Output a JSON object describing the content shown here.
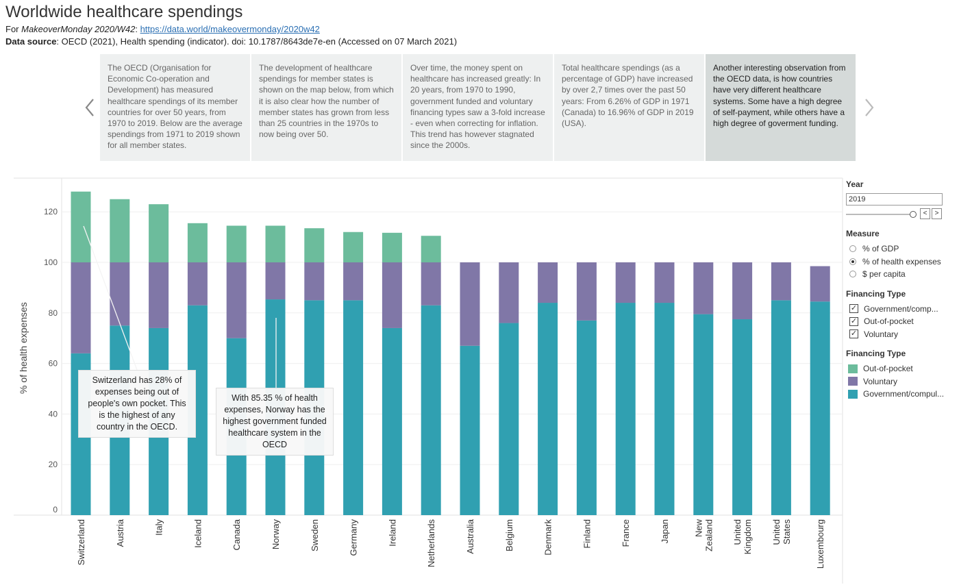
{
  "header": {
    "title": "Worldwide healthcare spendings",
    "for_prefix": "For ",
    "for_italic": "MakeoverMonday 2020/W42",
    "for_colon": ": ",
    "link": "https://data.world/makeovermonday/2020w42",
    "source_label": "Data source",
    "source_text": ": OECD (2021), Health spending (indicator). doi: 10.1787/8643de7e-en (Accessed on 07 March 2021)"
  },
  "carousel": {
    "prev_icon": "chevron-left-icon",
    "next_icon": "chevron-right-icon",
    "cards": [
      "The OECD (Organisation for Economic Co-operation and Development) has measured healthcare spendings of its member countries for over 50 years, from 1970 to 2019. Below are the average spendings from 1971 to 2019 shown for all member states.",
      "The development of healthcare spendings for member states is shown on the map below, from which it is also clear how the number of member states has grown from less than 25 countries in the 1970s to now being over 50.",
      "Over time, the money spent on healthcare has increased greatly: In 20 years, from 1970 to 1990, government funded and voluntary financing types saw a 3-fold increase - even when correcting for inflation. This trend has however stagnated since the 2000s.",
      "Total healthcare spendings (as a percentage of GDP) have increased by over 2,7 times over the past 50 years: From 6.26% of GDP in 1971 (Canada) to 16.96% of GDP in 2019 (USA).",
      "Another interesting observation from the OECD data, is how countries have very different healthcare systems. Some have a high degree of self-payment, while others have a high degree of goverment funding."
    ],
    "active_index": 4
  },
  "annotations": {
    "switzerland": "Switzerland has 28% of expenses being out of people's own pocket. This is the highest of any country in the OECD.",
    "norway": "With 85.35 % of health expenses, Norway has the highest government funded healthcare system in the OECD"
  },
  "chart_data": {
    "type": "bar",
    "stacked": true,
    "ylabel": "% of health expenses",
    "ylim": [
      0,
      130
    ],
    "yticks": [
      "0",
      "20",
      "40",
      "60",
      "80",
      "100",
      "120"
    ],
    "grid": true,
    "categories": [
      [
        "Switzerland"
      ],
      [
        "Austria"
      ],
      [
        "Italy"
      ],
      [
        "Iceland"
      ],
      [
        "Canada"
      ],
      [
        "Norway"
      ],
      [
        "Sweden"
      ],
      [
        "Germany"
      ],
      [
        "Ireland"
      ],
      [
        "Netherlands"
      ],
      [
        "Australia"
      ],
      [
        "Belgium"
      ],
      [
        "Denmark"
      ],
      [
        "Finland"
      ],
      [
        "France"
      ],
      [
        "Japan"
      ],
      [
        "New",
        "Zealand"
      ],
      [
        "United",
        "Kingdom"
      ],
      [
        "United",
        "States"
      ],
      [
        "Luxembourg"
      ]
    ],
    "series": [
      {
        "name": "Government/compul..",
        "color": "#30a0b1",
        "values": [
          64,
          75,
          74,
          83,
          70,
          85.35,
          85,
          85,
          74,
          83,
          67,
          76,
          84,
          77,
          84,
          84,
          79.5,
          77.5,
          85,
          84.5
        ]
      },
      {
        "name": "Voluntary",
        "color": "#8077a7",
        "values": [
          36,
          25,
          26,
          17,
          30,
          14.65,
          15,
          15,
          26,
          17,
          33,
          24,
          16,
          23,
          16,
          16,
          20.5,
          22.5,
          15,
          14
        ]
      },
      {
        "name": "Out-of-pocket",
        "color": "#6cbc9c",
        "values": [
          28,
          25,
          23,
          15.5,
          14.5,
          14.5,
          13.5,
          12,
          11.7,
          10.5,
          0,
          0,
          0,
          0,
          0,
          0,
          0,
          0,
          0,
          0
        ]
      }
    ]
  },
  "panel": {
    "year_title": "Year",
    "year_value": "2019",
    "prev_btn": "<",
    "next_btn": ">",
    "measure_title": "Measure",
    "measure_options": [
      "% of GDP",
      "% of health expenses",
      "$ per capita"
    ],
    "measure_selected": 1,
    "filter_title": "Financing Type",
    "filter_options": [
      "Government/comp...",
      "Out-of-pocket",
      "Voluntary"
    ],
    "check_mark": "✓",
    "legend_title": "Financing Type",
    "legend_items": [
      {
        "label": "Out-of-pocket",
        "color": "#6cbc9c"
      },
      {
        "label": "Voluntary",
        "color": "#8077a7"
      },
      {
        "label": "Government/compul...",
        "color": "#30a0b1"
      }
    ]
  }
}
